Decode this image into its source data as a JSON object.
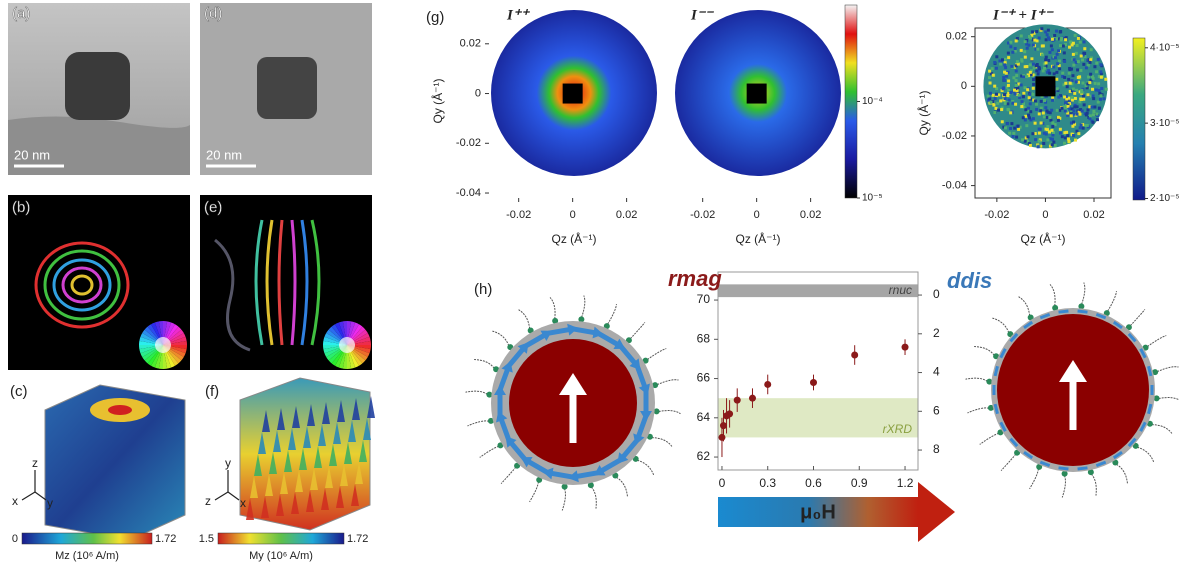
{
  "panels": {
    "a": {
      "label": "(a)",
      "scale_bar": "20 nm"
    },
    "b": {
      "label": "(b)"
    },
    "c": {
      "label": "(c)",
      "axes": [
        "z",
        "x",
        "y"
      ],
      "colorbar": {
        "ticks": [
          0,
          1.72
        ],
        "label": "Mz (10⁶ A/m)"
      }
    },
    "d": {
      "label": "(d)",
      "scale_bar": "20 nm"
    },
    "e": {
      "label": "(e)"
    },
    "f": {
      "label": "(f)",
      "axes": [
        "y",
        "z",
        "x"
      ],
      "colorbar": {
        "ticks": [
          1.5,
          1.72
        ],
        "label": "My (10⁶ A/m)"
      }
    },
    "g": {
      "label": "(g)"
    },
    "h": {
      "label": "(h)",
      "arrow_label": "μ₀H"
    }
  },
  "chart_data": [
    {
      "type": "image",
      "title": "I⁺⁺",
      "xlabel": "Qz (Å⁻¹)",
      "ylabel": "Qy (Å⁻¹)",
      "xlim": [
        -0.031,
        0.032
      ],
      "ylim": [
        -0.042,
        0.036
      ],
      "xticks": [
        -0.02,
        0,
        0.02
      ],
      "yticks": [
        -0.04,
        -0.02,
        0,
        0.02
      ]
    },
    {
      "type": "image",
      "title": "I⁻⁻",
      "xlabel": "Qz (Å⁻¹)",
      "xlim": [
        -0.031,
        0.032
      ],
      "ylim": [
        -0.042,
        0.036
      ],
      "xticks": [
        -0.02,
        0,
        0.02
      ],
      "colorbar": {
        "lim": [
          1e-05,
          0.001
        ],
        "log": true,
        "ticks": [
          {
            "value": 1e-05,
            "label": "10⁻⁵"
          },
          {
            "value": 0.0001,
            "label": "10⁻⁴"
          }
        ]
      }
    },
    {
      "type": "image",
      "title": "I⁻⁺ + I⁺⁻",
      "xlabel": "Qz (Å⁻¹)",
      "ylabel": "Qy (Å⁻¹)",
      "frame": true,
      "xlim": [
        -0.029,
        0.027
      ],
      "ylim": [
        -0.045,
        0.0235
      ],
      "xticks": [
        -0.02,
        0,
        0.02
      ],
      "yticks": [
        -0.04,
        -0.02,
        0,
        0.02
      ],
      "colorbar": {
        "lim": [
          1.98e-05,
          4.13e-05
        ],
        "log": false,
        "ticks": [
          {
            "value": 2e-05,
            "label": "2·10⁻⁵"
          },
          {
            "value": 3e-05,
            "label": "3·10⁻⁵"
          },
          {
            "value": 4e-05,
            "label": "4·10⁻⁵"
          }
        ]
      }
    },
    {
      "type": "scatter",
      "ylabel": "rmag",
      "y2label": "ddis",
      "x": [
        0,
        0.01,
        0.03,
        0.05,
        0.1,
        0.2,
        0.3,
        0.6,
        0.87,
        1.2
      ],
      "series": [
        {
          "color": "#8b1a1a",
          "values": [
            63.0,
            63.6,
            64.1,
            64.2,
            64.9,
            65.0,
            65.7,
            65.8,
            67.2,
            67.6
          ],
          "errors": [
            1.0,
            0.8,
            0.9,
            0.7,
            0.6,
            0.5,
            0.5,
            0.4,
            0.5,
            0.4
          ]
        }
      ],
      "xlim": [
        -0.026,
        1.285
      ],
      "ylim": [
        61.34,
        71.43
      ],
      "xticks": [
        0,
        0.3,
        0.6,
        0.9,
        1.2
      ],
      "yticks": [
        62,
        64,
        66,
        68,
        70
      ],
      "y2lim": [
        9.03,
        -1.19
      ],
      "y2ticks": [
        0,
        2,
        4,
        6,
        8
      ],
      "bands": [
        {
          "label": "rnuc",
          "range": [
            70.15,
            70.8
          ],
          "color": "#a6a6a6"
        },
        {
          "label": "rXRD",
          "range": [
            63.0,
            65.0
          ],
          "color": "#dfe9c4"
        }
      ]
    }
  ]
}
